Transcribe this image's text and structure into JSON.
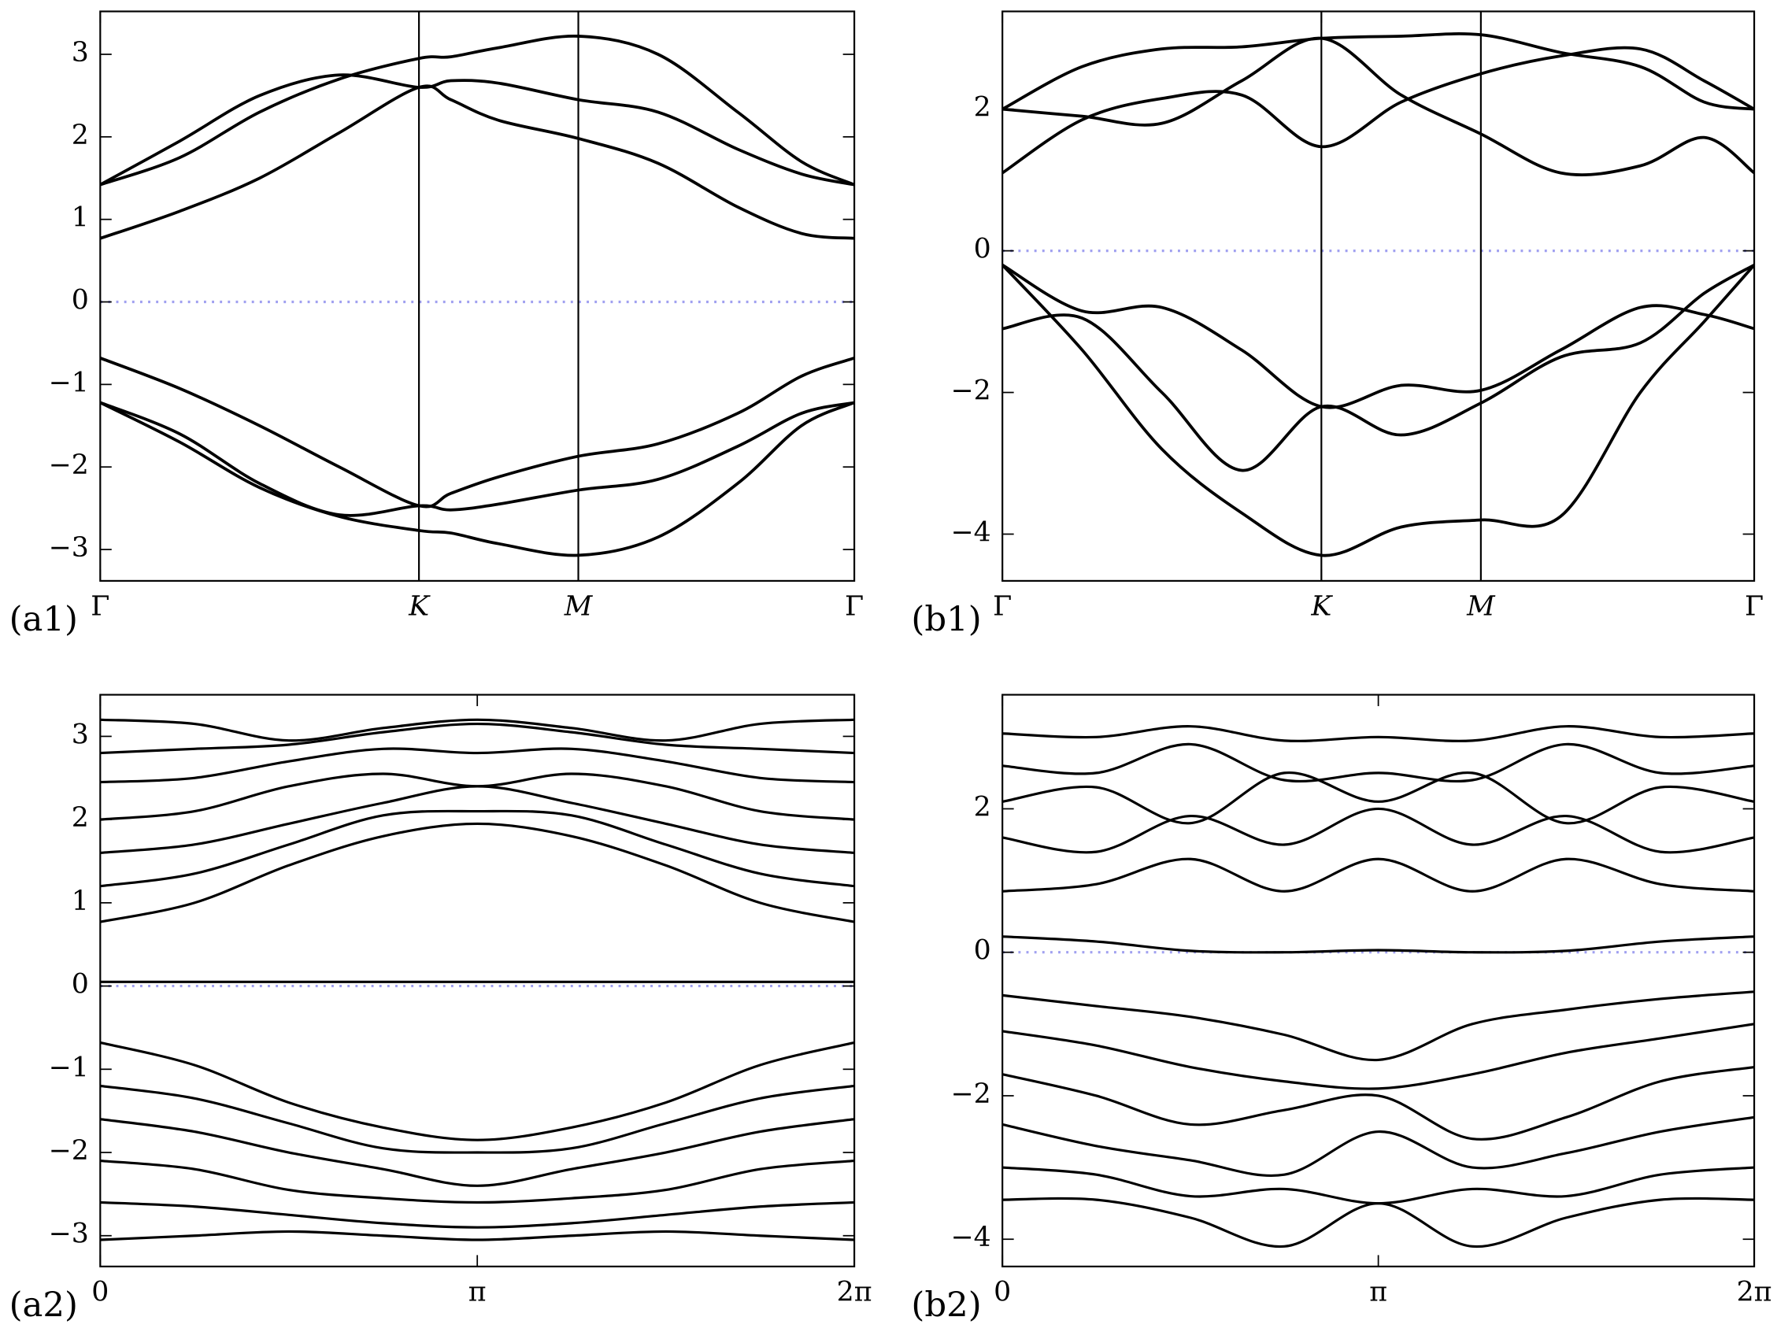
{
  "chart_data": [
    {
      "type": "line",
      "label": "(a1)",
      "color": "#000000",
      "x": [
        0,
        0.25,
        0.5,
        0.75,
        1,
        1.1,
        1.25,
        1.5,
        1.75,
        2,
        2.2,
        2.366
      ],
      "series": [
        {
          "values": [
            0.77,
            1.1,
            1.5,
            2.05,
            2.6,
            2.45,
            2.2,
            1.98,
            1.68,
            1.15,
            0.83,
            0.77
          ]
        },
        {
          "values": [
            1.42,
            1.95,
            2.5,
            2.75,
            2.6,
            2.68,
            2.65,
            2.45,
            2.3,
            1.85,
            1.55,
            1.42
          ]
        },
        {
          "values": [
            1.42,
            1.75,
            2.3,
            2.7,
            2.95,
            2.97,
            3.08,
            3.22,
            3.0,
            2.3,
            1.7,
            1.42
          ]
        },
        {
          "values": [
            -0.68,
            -1.05,
            -1.5,
            -2.0,
            -2.47,
            -2.32,
            -2.12,
            -1.87,
            -1.72,
            -1.35,
            -0.9,
            -0.68
          ]
        },
        {
          "values": [
            -1.22,
            -1.6,
            -2.2,
            -2.58,
            -2.47,
            -2.52,
            -2.45,
            -2.28,
            -2.15,
            -1.75,
            -1.35,
            -1.22
          ]
        },
        {
          "values": [
            -1.22,
            -1.7,
            -2.25,
            -2.6,
            -2.77,
            -2.8,
            -2.93,
            -3.07,
            -2.85,
            -2.2,
            -1.5,
            -1.22
          ]
        }
      ],
      "xlim": [
        0,
        2.366
      ],
      "ylim": [
        -3.38,
        3.52
      ],
      "xticks": [
        {
          "value": 0,
          "label": "Γ"
        },
        {
          "value": 1,
          "label": "K"
        },
        {
          "value": 1.5,
          "label": "M"
        },
        {
          "value": 2.366,
          "label": "Γ"
        }
      ],
      "yticks": [
        {
          "value": -3,
          "label": "−3"
        },
        {
          "value": -2,
          "label": "−2"
        },
        {
          "value": -1,
          "label": "−1"
        },
        0,
        1,
        2,
        3
      ],
      "zero_line": {
        "value": 0,
        "color": "#a0a0f0"
      },
      "vlines": true
    },
    {
      "type": "line",
      "label": "(b1)",
      "color": "#000000",
      "x": [
        0,
        0.25,
        0.5,
        0.75,
        1,
        1.25,
        1.5,
        1.75,
        2,
        2.2,
        2.357
      ],
      "series": [
        {
          "values": [
            1.1,
            1.85,
            2.15,
            2.2,
            1.47,
            2.1,
            2.5,
            2.75,
            2.85,
            2.4,
            2.0
          ]
        },
        {
          "values": [
            2.0,
            1.9,
            1.8,
            2.4,
            3.0,
            2.2,
            1.65,
            1.1,
            1.2,
            1.6,
            1.1
          ]
        },
        {
          "values": [
            2.0,
            2.6,
            2.85,
            2.88,
            3.0,
            3.03,
            3.05,
            2.8,
            2.6,
            2.1,
            2.0
          ]
        },
        {
          "values": [
            -0.2,
            -0.85,
            -0.8,
            -1.4,
            -2.2,
            -1.9,
            -1.97,
            -1.4,
            -0.8,
            -0.9,
            -1.1
          ]
        },
        {
          "values": [
            -1.1,
            -0.95,
            -2.0,
            -3.1,
            -2.2,
            -2.6,
            -2.15,
            -1.5,
            -1.3,
            -0.6,
            -0.2
          ]
        },
        {
          "values": [
            -0.2,
            -1.4,
            -2.8,
            -3.7,
            -4.3,
            -3.9,
            -3.8,
            -3.75,
            -2.0,
            -1.0,
            -0.2
          ]
        }
      ],
      "xlim": [
        0,
        2.357
      ],
      "ylim": [
        -4.66,
        3.38
      ],
      "xticks": [
        {
          "value": 0,
          "label": "Γ"
        },
        {
          "value": 1,
          "label": "K"
        },
        {
          "value": 1.5,
          "label": "M"
        },
        {
          "value": 2.357,
          "label": "Γ"
        }
      ],
      "yticks": [
        {
          "value": -4,
          "label": "−4"
        },
        {
          "value": -2,
          "label": "−2"
        },
        0,
        2
      ],
      "zero_line": {
        "value": 0,
        "color": "#a0a0f0"
      },
      "vlines": true
    },
    {
      "type": "line",
      "label": "(a2)",
      "color": "#000000",
      "x": [
        0,
        0.785,
        1.571,
        2.356,
        3.142,
        3.927,
        4.712,
        5.498,
        6.283
      ],
      "series": [
        {
          "values": [
            0.77,
            1.0,
            1.45,
            1.8,
            1.95,
            1.8,
            1.45,
            1.0,
            0.77
          ]
        },
        {
          "values": [
            1.2,
            1.35,
            1.7,
            2.05,
            2.1,
            2.05,
            1.7,
            1.35,
            1.2
          ]
        },
        {
          "values": [
            1.6,
            1.7,
            1.95,
            2.2,
            2.4,
            2.2,
            1.95,
            1.7,
            1.6
          ]
        },
        {
          "values": [
            2.0,
            2.1,
            2.4,
            2.55,
            2.4,
            2.55,
            2.4,
            2.1,
            2.0
          ]
        },
        {
          "values": [
            2.45,
            2.5,
            2.7,
            2.85,
            2.8,
            2.85,
            2.7,
            2.5,
            2.45
          ]
        },
        {
          "values": [
            2.8,
            2.85,
            2.9,
            3.05,
            3.15,
            3.05,
            2.9,
            2.85,
            2.8
          ]
        },
        {
          "values": [
            3.2,
            3.15,
            2.95,
            3.1,
            3.2,
            3.1,
            2.95,
            3.15,
            3.2
          ]
        },
        {
          "values": [
            0.05,
            0.05,
            0.05,
            0.05,
            0.05,
            0.05,
            0.05,
            0.05,
            0.05
          ]
        },
        {
          "values": [
            -0.68,
            -0.95,
            -1.4,
            -1.7,
            -1.85,
            -1.7,
            -1.4,
            -0.95,
            -0.68
          ]
        },
        {
          "values": [
            -1.2,
            -1.35,
            -1.65,
            -1.95,
            -2.0,
            -1.95,
            -1.65,
            -1.35,
            -1.2
          ]
        },
        {
          "values": [
            -1.6,
            -1.75,
            -2.0,
            -2.2,
            -2.4,
            -2.2,
            -2.0,
            -1.75,
            -1.6
          ]
        },
        {
          "values": [
            -2.1,
            -2.2,
            -2.45,
            -2.55,
            -2.6,
            -2.55,
            -2.45,
            -2.2,
            -2.1
          ]
        },
        {
          "values": [
            -2.6,
            -2.65,
            -2.75,
            -2.85,
            -2.9,
            -2.85,
            -2.75,
            -2.65,
            -2.6
          ]
        },
        {
          "values": [
            -3.05,
            -3.0,
            -2.95,
            -3.0,
            -3.05,
            -3.0,
            -2.95,
            -3.0,
            -3.05
          ]
        }
      ],
      "xlim": [
        0,
        6.2832
      ],
      "ylim": [
        -3.37,
        3.5
      ],
      "xticks": [
        0,
        {
          "value": 3.1416,
          "label": "π"
        },
        {
          "value": 6.2832,
          "label": "2π"
        }
      ],
      "yticks": [
        {
          "value": -3,
          "label": "−3"
        },
        {
          "value": -2,
          "label": "−2"
        },
        {
          "value": -1,
          "label": "−1"
        },
        0,
        1,
        2,
        3
      ],
      "zero_line": {
        "value": 0,
        "color": "#a0a0f0"
      },
      "vlines": false
    },
    {
      "type": "line",
      "label": "(b2)",
      "color": "#000000",
      "x": [
        0,
        0.785,
        1.571,
        2.356,
        3.142,
        3.927,
        4.712,
        5.498,
        6.283
      ],
      "series": [
        {
          "values": [
            0.22,
            0.15,
            0.02,
            0.0,
            0.03,
            0.0,
            0.02,
            0.15,
            0.22
          ]
        },
        {
          "values": [
            0.85,
            0.95,
            1.3,
            0.85,
            1.3,
            0.85,
            1.3,
            0.95,
            0.85
          ]
        },
        {
          "values": [
            1.6,
            1.4,
            1.9,
            1.5,
            2.0,
            1.5,
            1.9,
            1.4,
            1.6
          ]
        },
        {
          "values": [
            2.1,
            2.3,
            1.8,
            2.5,
            2.1,
            2.5,
            1.8,
            2.3,
            2.1
          ]
        },
        {
          "values": [
            2.6,
            2.5,
            2.9,
            2.4,
            2.5,
            2.4,
            2.9,
            2.5,
            2.6
          ]
        },
        {
          "values": [
            3.05,
            3.0,
            3.15,
            2.95,
            3.0,
            2.95,
            3.15,
            3.0,
            3.05
          ]
        },
        {
          "values": [
            -0.6,
            -0.75,
            -0.9,
            -1.15,
            -1.5,
            -1.0,
            -0.8,
            -0.65,
            -0.55
          ]
        },
        {
          "values": [
            -1.1,
            -1.3,
            -1.6,
            -1.8,
            -1.9,
            -1.7,
            -1.4,
            -1.2,
            -1.0
          ]
        },
        {
          "values": [
            -1.7,
            -2.0,
            -2.4,
            -2.2,
            -2.0,
            -2.6,
            -2.3,
            -1.8,
            -1.6
          ]
        },
        {
          "values": [
            -2.4,
            -2.7,
            -2.9,
            -3.1,
            -2.5,
            -3.0,
            -2.8,
            -2.5,
            -2.3
          ]
        },
        {
          "values": [
            -3.0,
            -3.1,
            -3.4,
            -3.3,
            -3.5,
            -3.3,
            -3.4,
            -3.1,
            -3.0
          ]
        },
        {
          "values": [
            -3.45,
            -3.45,
            -3.7,
            -4.1,
            -3.5,
            -4.1,
            -3.7,
            -3.45,
            -3.45
          ]
        }
      ],
      "xlim": [
        0,
        6.2832
      ],
      "ylim": [
        -4.38,
        3.59
      ],
      "xticks": [
        0,
        {
          "value": 3.1416,
          "label": "π"
        },
        {
          "value": 6.2832,
          "label": "2π"
        }
      ],
      "yticks": [
        {
          "value": -4,
          "label": "−4"
        },
        {
          "value": -2,
          "label": "−2"
        },
        0,
        2
      ],
      "zero_line": {
        "value": 0,
        "color": "#a0a0f0"
      },
      "vlines": false
    }
  ]
}
